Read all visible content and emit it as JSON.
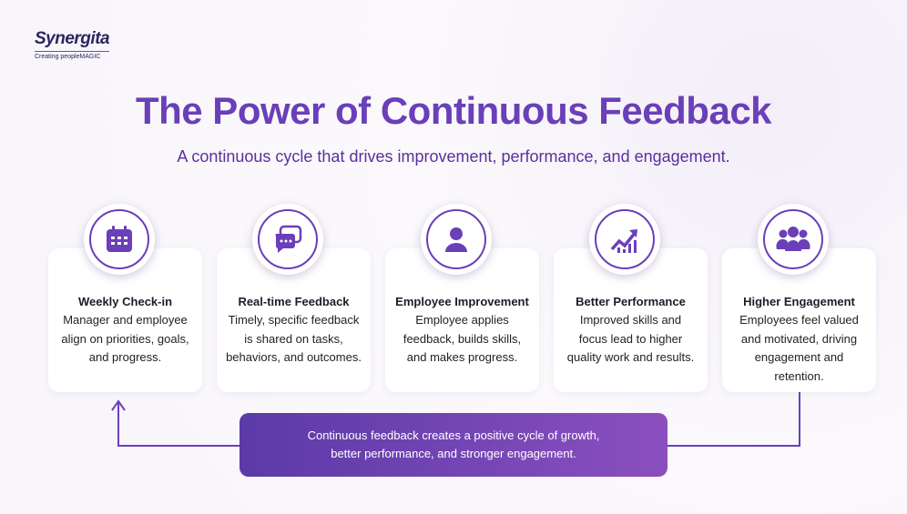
{
  "logo": {
    "name": "Synergita",
    "tagline": "Creating peopleMAGIC"
  },
  "header": {
    "title": "The Power of Continuous Feedback",
    "subtitle": "A continuous cycle that drives improvement, performance, and engagement."
  },
  "steps": [
    {
      "title": "Weekly Check-in",
      "lines": [
        "Manager and employee",
        "align on priorities, goals,",
        "and progress."
      ]
    },
    {
      "title": "Real-time Feedback",
      "lines": [
        "Timely, specific feedback",
        "is shared on tasks,",
        "behaviors, and outcomes."
      ]
    },
    {
      "title": "Employee Improvement",
      "lines": [
        "Employee applies",
        "feedback, builds skills,",
        "and makes progress."
      ]
    },
    {
      "title": "Better Performance",
      "lines": [
        "Improved skills and",
        "focus lead to higher",
        "quality work and results."
      ]
    },
    {
      "title": "Higher Engagement",
      "lines": [
        "Employees feel valued",
        "and motivated, driving",
        "engagement and",
        "retention."
      ]
    }
  ],
  "footer": {
    "lines": [
      "Continuous feedback creates a positive cycle of growth,",
      "better performance, and stronger engagement."
    ]
  }
}
